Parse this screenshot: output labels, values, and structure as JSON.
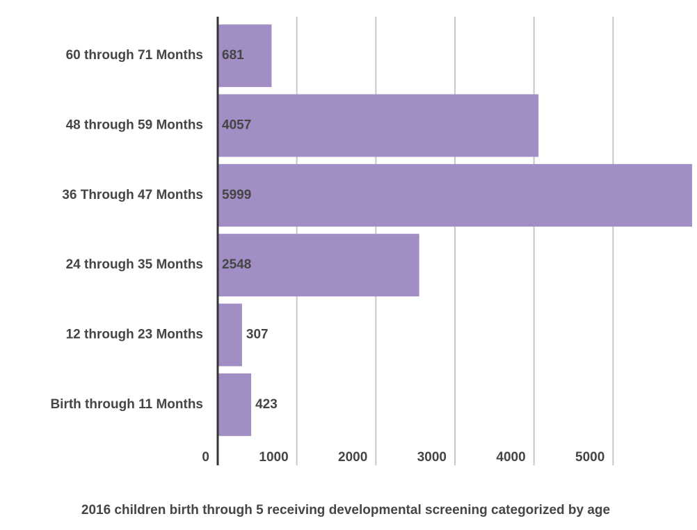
{
  "chart_data": {
    "type": "barh",
    "title": "2016 children birth through 5 receiving developmental screening categorized by age",
    "categories": [
      "60 through 71 Months",
      "48 through 59 Months",
      "36 Through 47 Months",
      "24 through 35 Months",
      "12 through 23 Months",
      "Birth through 11 Months"
    ],
    "values": [
      681,
      4057,
      5999,
      2548,
      307,
      423
    ],
    "color": "#a08ec4",
    "xlim": [
      0,
      6000
    ],
    "xticks": [
      0,
      1000,
      2000,
      3000,
      4000,
      5000
    ],
    "grid": true
  }
}
